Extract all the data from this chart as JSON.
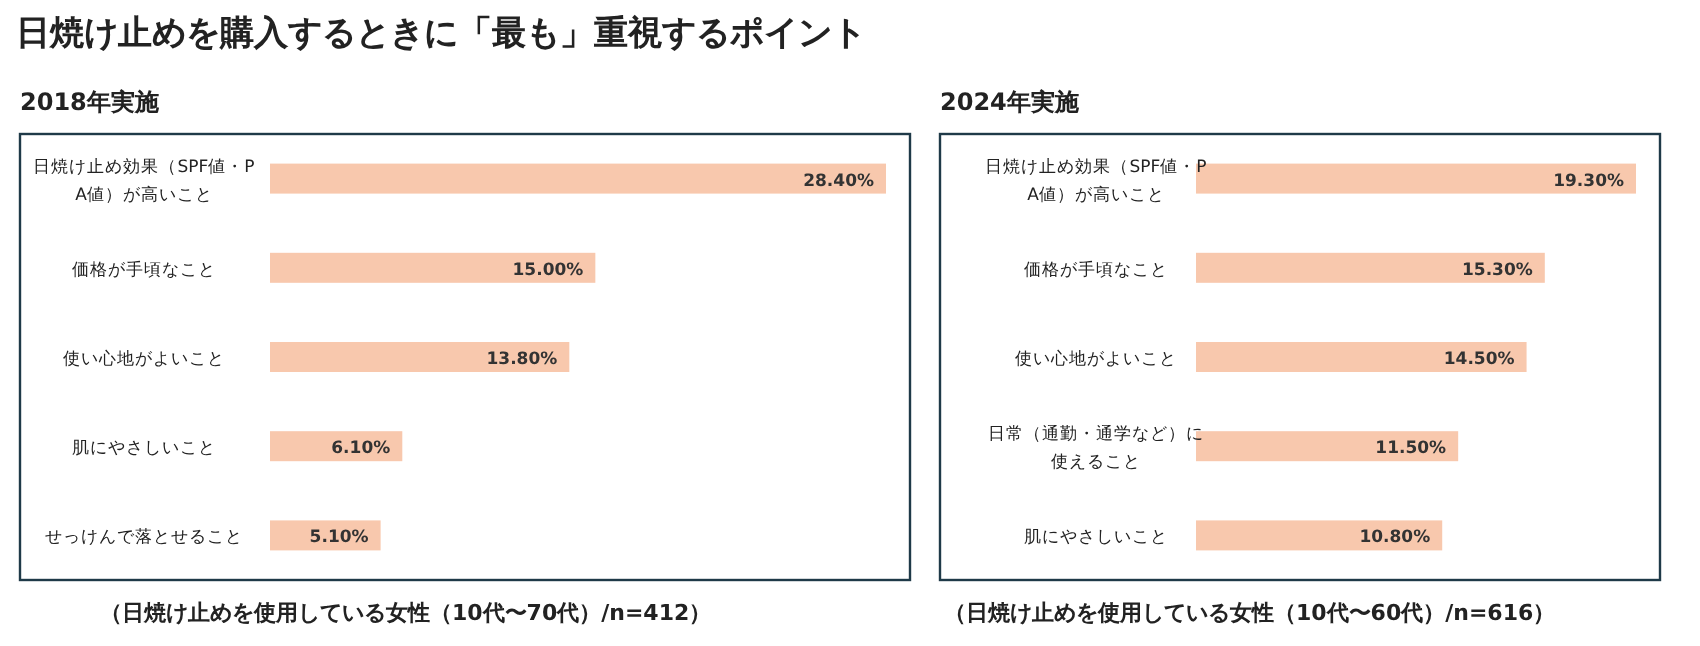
{
  "chart_data": [
    {
      "type": "bar",
      "orientation": "horizontal",
      "title": "日焼け止めを購入するときに「最も」重視するポイント",
      "subtitle": "2018年実施",
      "categories": [
        "日焼け止め効果（SPF値・PA値）が高いこと",
        "価格が手頃なこと",
        "使い心地がよいこと",
        "肌にやさしいこと",
        "せっけんで落とせること"
      ],
      "series": [
        {
          "color": "#f8c8ad",
          "values": [
            28.4,
            15.0,
            13.8,
            6.1,
            5.1
          ],
          "value_labels": [
            "28.40%",
            "15.00%",
            "13.80%",
            "6.10%",
            "5.10%"
          ]
        }
      ],
      "tick_labels": "y",
      "annotations": [
        "（日焼け止めを使用している女性（10代〜70代）/n=412）"
      ]
    },
    {
      "type": "bar",
      "orientation": "horizontal",
      "subtitle": "2024年実施",
      "categories": [
        "日焼け止め効果（SPF値・PA値）が高いこと",
        "価格が手頃なこと",
        "使い心地がよいこと",
        "日常（通勤・通学など）に使えること",
        "肌にやさしいこと"
      ],
      "series": [
        {
          "color": "#f8c8ad",
          "values": [
            19.3,
            15.3,
            14.5,
            11.5,
            10.8
          ],
          "value_labels": [
            "19.30%",
            "15.30%",
            "14.50%",
            "11.50%",
            "10.80%"
          ]
        }
      ],
      "tick_labels": "y",
      "annotations": [
        "（日焼け止めを使用している女性（10代〜60代）/n=616）"
      ]
    }
  ]
}
